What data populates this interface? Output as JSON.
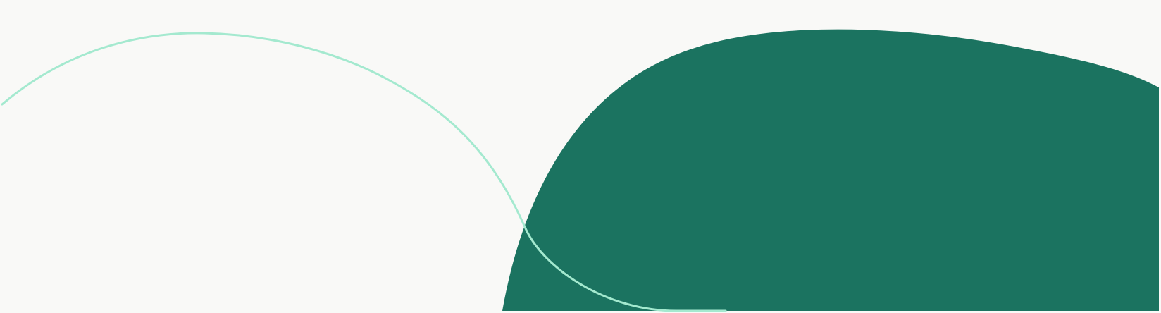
{
  "colors": {
    "background": "#f9f9f7",
    "blob_fill": "#1b7360",
    "wave_stroke": "#a4e9cf"
  },
  "shapes": {
    "blob": "dark-green-blob",
    "wave": "mint-wave-line"
  }
}
